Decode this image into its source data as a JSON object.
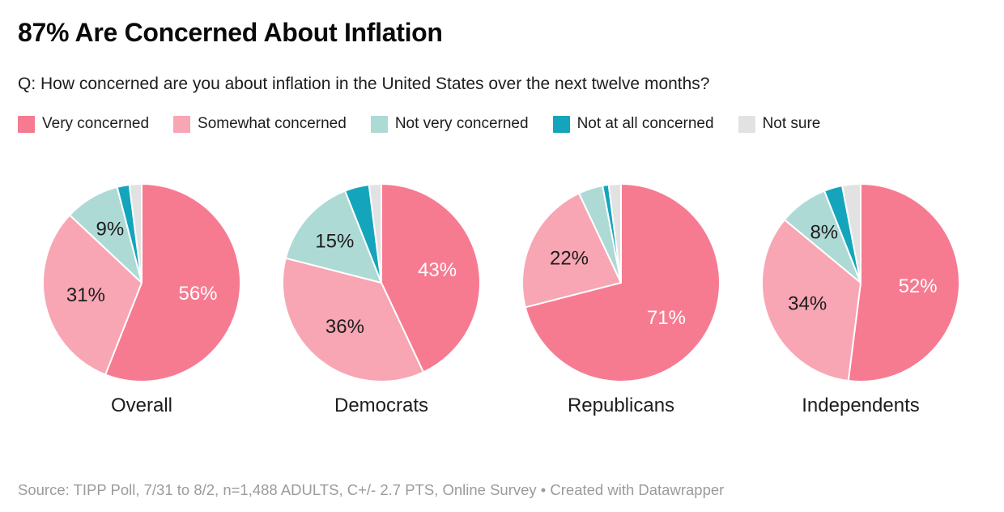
{
  "header": {
    "title": "87% Are Concerned About Inflation",
    "subtitle": "Q: How concerned are you about inflation in the United States over the next twelve months?"
  },
  "legend": {
    "items": [
      {
        "label": "Very concerned",
        "color": "#f67b91"
      },
      {
        "label": "Somewhat concerned",
        "color": "#f8a6b4"
      },
      {
        "label": "Not very concerned",
        "color": "#aedad6"
      },
      {
        "label": "Not at all concerned",
        "color": "#14a5bd"
      },
      {
        "label": "Not sure",
        "color": "#e2e2e2"
      }
    ]
  },
  "chart_data": {
    "type": "pie",
    "title": "87% Are Concerned About Inflation",
    "subtitle": "Q: How concerned are you about inflation in the United States over the next twelve months?",
    "categories": [
      "Very concerned",
      "Somewhat concerned",
      "Not very concerned",
      "Not at all concerned",
      "Not sure"
    ],
    "colors": [
      "#f67b91",
      "#f8a6b4",
      "#aedad6",
      "#14a5bd",
      "#e2e2e2"
    ],
    "label_colors": [
      "#ffffff",
      "#1d1d1d",
      "#1d1d1d",
      "#1d1d1d",
      "#1d1d1d"
    ],
    "min_label_value": 8,
    "start_angle_deg": 0,
    "direction": "clockwise",
    "pies": [
      {
        "group": "Overall",
        "values": [
          56,
          31,
          9,
          2,
          2
        ]
      },
      {
        "group": "Democrats",
        "values": [
          43,
          36,
          15,
          4,
          2
        ]
      },
      {
        "group": "Republicans",
        "values": [
          71,
          22,
          4,
          1,
          2
        ]
      },
      {
        "group": "Independents",
        "values": [
          52,
          34,
          8,
          3,
          3
        ]
      }
    ]
  },
  "footer": {
    "text": "Source: TIPP Poll, 7/31 to 8/2, n=1,488 ADULTS, C+/- 2.7 PTS, Online Survey • Created with Datawrapper"
  }
}
